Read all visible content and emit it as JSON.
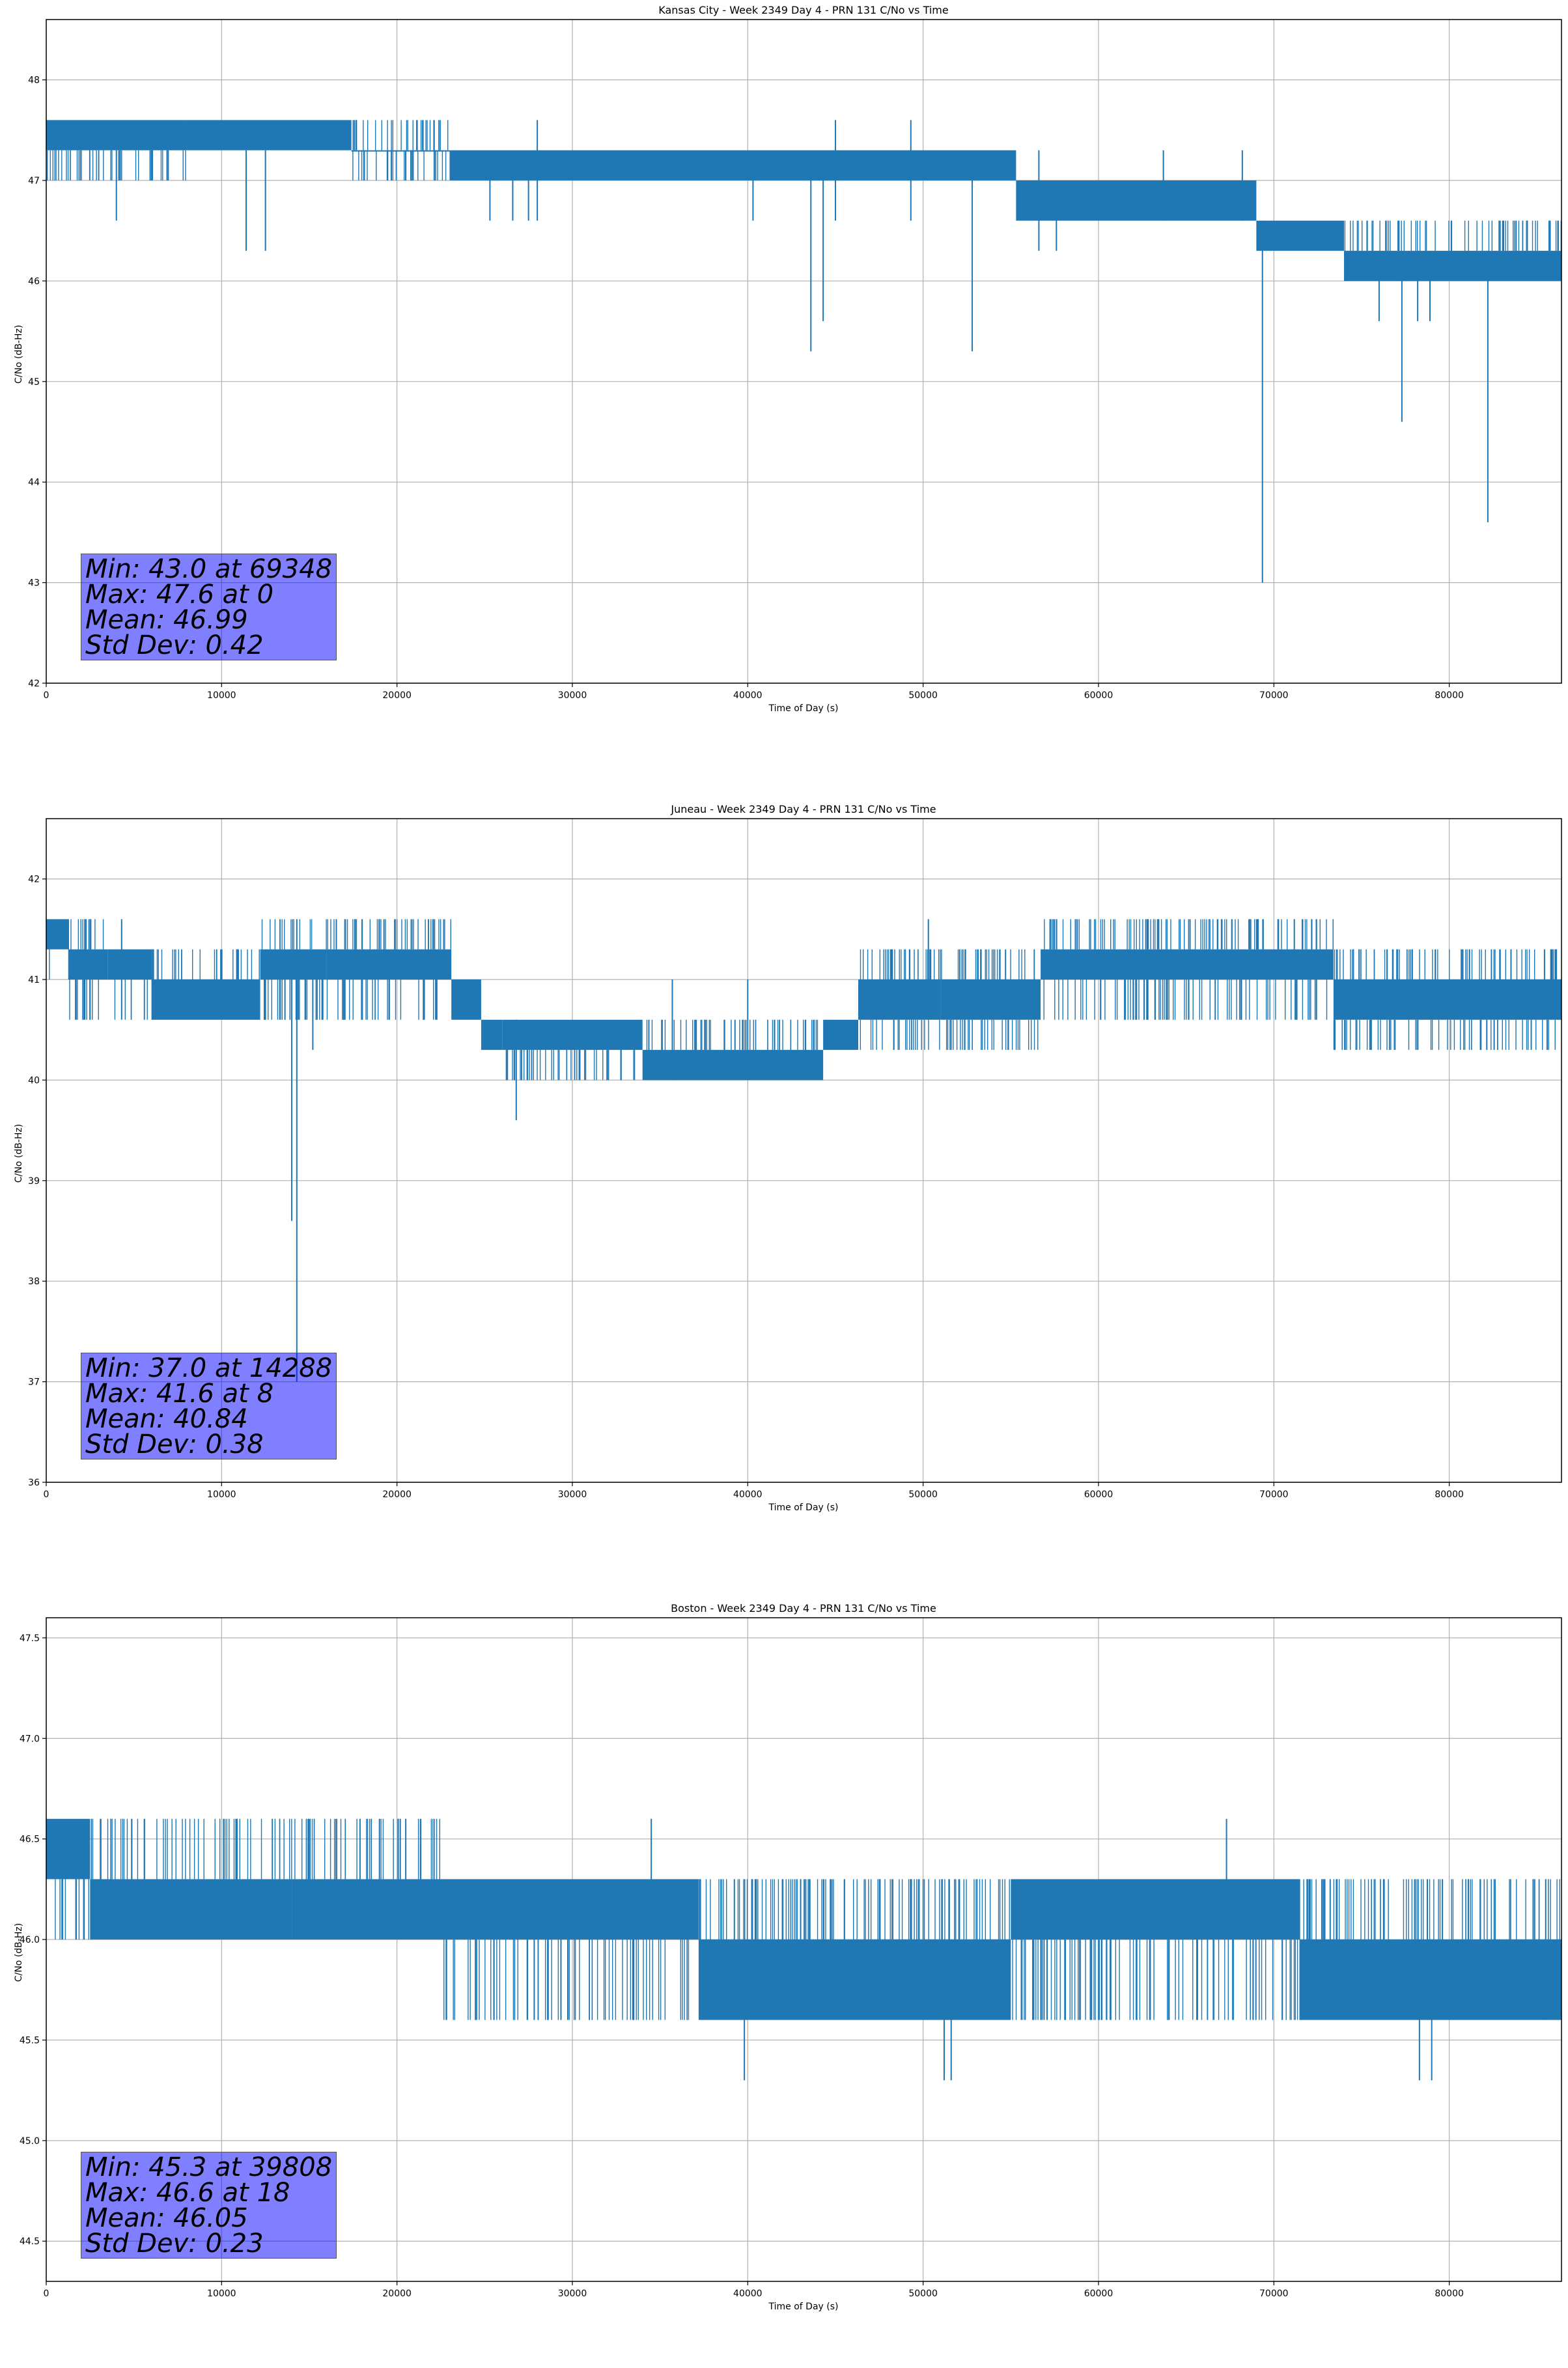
{
  "colors": {
    "series": "#1f77b4",
    "grid": "#b0b0b0",
    "stats_box": "#8080ff"
  },
  "chart_data": [
    {
      "type": "line",
      "title": "Kansas City - Week 2349 Day 4 - PRN 131 C/No vs Time",
      "xlabel": "Time of Day (s)",
      "ylabel": "C/No (dB-Hz)",
      "xlim": [
        0,
        86400
      ],
      "ylim": [
        42,
        48.6
      ],
      "xticks": [
        0,
        10000,
        20000,
        30000,
        40000,
        50000,
        60000,
        70000,
        80000
      ],
      "xtick_labels": [
        "0",
        "10000",
        "20000",
        "30000",
        "40000",
        "50000",
        "60000",
        "70000",
        "80000"
      ],
      "yticks": [
        42,
        43,
        44,
        45,
        46,
        47,
        48
      ],
      "ytick_labels": [
        "42",
        "43",
        "44",
        "45",
        "46",
        "47",
        "48"
      ],
      "grid": true,
      "series": [
        {
          "name": "C/No",
          "segments": [
            {
              "x0": 0,
              "x1": 8000,
              "lo": 47.0,
              "hi": 47.6,
              "core_lo": 47.3,
              "core_hi": 47.6
            },
            {
              "x0": 8000,
              "x1": 17400,
              "lo": 47.3,
              "hi": 47.6,
              "core_lo": 47.3,
              "core_hi": 47.6
            },
            {
              "x0": 17400,
              "x1": 23000,
              "lo": 47.0,
              "hi": 47.6,
              "core_lo": 47.3,
              "core_hi": 47.3
            },
            {
              "x0": 23000,
              "x1": 55300,
              "lo": 47.0,
              "hi": 47.3,
              "core_lo": 47.0,
              "core_hi": 47.3
            },
            {
              "x0": 55300,
              "x1": 69000,
              "lo": 46.6,
              "hi": 47.0,
              "core_lo": 46.6,
              "core_hi": 47.0
            },
            {
              "x0": 69000,
              "x1": 74000,
              "lo": 46.3,
              "hi": 46.6,
              "core_lo": 46.3,
              "core_hi": 46.6
            },
            {
              "x0": 74000,
              "x1": 86400,
              "lo": 46.0,
              "hi": 46.6,
              "core_lo": 46.0,
              "core_hi": 46.3
            }
          ],
          "spikes": [
            {
              "x": 4000,
              "lo": 46.6,
              "hi": 47.3
            },
            {
              "x": 11400,
              "lo": 46.3,
              "hi": 47.3
            },
            {
              "x": 12500,
              "lo": 46.3,
              "hi": 47.3
            },
            {
              "x": 25300,
              "lo": 46.6,
              "hi": 47.0
            },
            {
              "x": 26600,
              "lo": 46.6,
              "hi": 47.0
            },
            {
              "x": 27500,
              "lo": 46.6,
              "hi": 47.0
            },
            {
              "x": 28000,
              "lo": 46.6,
              "hi": 47.6
            },
            {
              "x": 40300,
              "lo": 46.6,
              "hi": 47.0
            },
            {
              "x": 43600,
              "lo": 45.3,
              "hi": 47.0
            },
            {
              "x": 44300,
              "lo": 45.6,
              "hi": 47.0
            },
            {
              "x": 45000,
              "lo": 46.6,
              "hi": 47.6
            },
            {
              "x": 49300,
              "lo": 46.6,
              "hi": 47.6
            },
            {
              "x": 52800,
              "lo": 45.3,
              "hi": 47.0
            },
            {
              "x": 56600,
              "lo": 46.3,
              "hi": 47.3
            },
            {
              "x": 57600,
              "lo": 46.3,
              "hi": 47.0
            },
            {
              "x": 63700,
              "lo": 46.6,
              "hi": 47.3
            },
            {
              "x": 68200,
              "lo": 46.6,
              "hi": 47.3
            },
            {
              "x": 69348,
              "lo": 43.0,
              "hi": 46.6
            },
            {
              "x": 76000,
              "lo": 45.6,
              "hi": 46.3
            },
            {
              "x": 77300,
              "lo": 44.6,
              "hi": 46.3
            },
            {
              "x": 78200,
              "lo": 45.6,
              "hi": 46.3
            },
            {
              "x": 78900,
              "lo": 45.6,
              "hi": 46.3
            },
            {
              "x": 82200,
              "lo": 43.6,
              "hi": 46.3
            }
          ]
        }
      ],
      "stats": {
        "min": "Min: 43.0 at 69348",
        "max": "Max: 47.6 at 0",
        "mean": "Mean: 46.99",
        "std": "Std Dev: 0.42"
      }
    },
    {
      "type": "line",
      "title": "Juneau - Week 2349 Day 4 - PRN 131 C/No vs Time",
      "xlabel": "Time of Day (s)",
      "ylabel": "C/No (dB-Hz)",
      "xlim": [
        0,
        86400
      ],
      "ylim": [
        36,
        42.6
      ],
      "xticks": [
        0,
        10000,
        20000,
        30000,
        40000,
        50000,
        60000,
        70000,
        80000
      ],
      "xtick_labels": [
        "0",
        "10000",
        "20000",
        "30000",
        "40000",
        "50000",
        "60000",
        "70000",
        "80000"
      ],
      "yticks": [
        36,
        37,
        38,
        39,
        40,
        41,
        42
      ],
      "ytick_labels": [
        "36",
        "37",
        "38",
        "39",
        "40",
        "41",
        "42"
      ],
      "grid": true,
      "series": [
        {
          "name": "C/No",
          "segments": [
            {
              "x0": 0,
              "x1": 1300,
              "lo": 41.0,
              "hi": 41.6,
              "core_lo": 41.3,
              "core_hi": 41.6
            },
            {
              "x0": 1300,
              "x1": 3500,
              "lo": 40.6,
              "hi": 41.6,
              "core_lo": 41.0,
              "core_hi": 41.3
            },
            {
              "x0": 3500,
              "x1": 6000,
              "lo": 40.6,
              "hi": 41.3,
              "core_lo": 41.0,
              "core_hi": 41.3
            },
            {
              "x0": 6000,
              "x1": 12200,
              "lo": 40.6,
              "hi": 41.3,
              "core_lo": 40.6,
              "core_hi": 41.0
            },
            {
              "x0": 12200,
              "x1": 16000,
              "lo": 40.6,
              "hi": 41.6,
              "core_lo": 41.0,
              "core_hi": 41.3
            },
            {
              "x0": 16000,
              "x1": 23100,
              "lo": 40.6,
              "hi": 41.6,
              "core_lo": 41.0,
              "core_hi": 41.3
            },
            {
              "x0": 23100,
              "x1": 24800,
              "lo": 40.6,
              "hi": 41.0,
              "core_lo": 40.6,
              "core_hi": 41.0
            },
            {
              "x0": 24800,
              "x1": 26000,
              "lo": 40.3,
              "hi": 40.6,
              "core_lo": 40.3,
              "core_hi": 40.6
            },
            {
              "x0": 26000,
              "x1": 34000,
              "lo": 40.0,
              "hi": 40.6,
              "core_lo": 40.3,
              "core_hi": 40.6
            },
            {
              "x0": 34000,
              "x1": 44300,
              "lo": 40.0,
              "hi": 40.6,
              "core_lo": 40.0,
              "core_hi": 40.3
            },
            {
              "x0": 44300,
              "x1": 46300,
              "lo": 40.3,
              "hi": 40.6,
              "core_lo": 40.3,
              "core_hi": 40.6
            },
            {
              "x0": 46300,
              "x1": 51000,
              "lo": 40.3,
              "hi": 41.3,
              "core_lo": 40.6,
              "core_hi": 41.0
            },
            {
              "x0": 51000,
              "x1": 56700,
              "lo": 40.3,
              "hi": 41.3,
              "core_lo": 40.6,
              "core_hi": 41.0
            },
            {
              "x0": 56700,
              "x1": 73400,
              "lo": 40.6,
              "hi": 41.6,
              "core_lo": 41.0,
              "core_hi": 41.3
            },
            {
              "x0": 73400,
              "x1": 86400,
              "lo": 40.3,
              "hi": 41.3,
              "core_lo": 40.6,
              "core_hi": 41.0
            }
          ],
          "spikes": [
            {
              "x": 2200,
              "lo": 40.6,
              "hi": 41.6
            },
            {
              "x": 4300,
              "lo": 40.6,
              "hi": 41.6
            },
            {
              "x": 14000,
              "lo": 38.6,
              "hi": 41.0
            },
            {
              "x": 14288,
              "lo": 37.0,
              "hi": 41.6
            },
            {
              "x": 15200,
              "lo": 40.3,
              "hi": 41.0
            },
            {
              "x": 26800,
              "lo": 39.6,
              "hi": 40.6
            },
            {
              "x": 35700,
              "lo": 40.0,
              "hi": 41.0
            },
            {
              "x": 40000,
              "lo": 40.0,
              "hi": 41.0
            },
            {
              "x": 50300,
              "lo": 40.6,
              "hi": 41.6
            },
            {
              "x": 54700,
              "lo": 40.6,
              "hi": 41.3
            }
          ]
        }
      ],
      "stats": {
        "min": "Min: 37.0 at 14288",
        "max": "Max: 41.6 at 8",
        "mean": "Mean: 40.84",
        "std": "Std Dev: 0.38"
      }
    },
    {
      "type": "line",
      "title": "Boston - Week 2349 Day 4 - PRN 131 C/No vs Time",
      "xlabel": "Time of Day (s)",
      "ylabel": "C/No (dB-Hz)",
      "xlim": [
        0,
        86400
      ],
      "ylim": [
        44.3,
        47.6
      ],
      "xticks": [
        0,
        10000,
        20000,
        30000,
        40000,
        50000,
        60000,
        70000,
        80000
      ],
      "xtick_labels": [
        "0",
        "10000",
        "20000",
        "30000",
        "40000",
        "50000",
        "60000",
        "70000",
        "80000"
      ],
      "yticks": [
        44.5,
        45.0,
        45.5,
        46.0,
        46.5,
        47.0,
        47.5
      ],
      "ytick_labels": [
        "44.5",
        "45.0",
        "45.5",
        "46.0",
        "46.5",
        "47.0",
        "47.5"
      ],
      "grid": true,
      "series": [
        {
          "name": "C/No",
          "segments": [
            {
              "x0": 0,
              "x1": 2500,
              "lo": 46.0,
              "hi": 46.6,
              "core_lo": 46.3,
              "core_hi": 46.6
            },
            {
              "x0": 2500,
              "x1": 14000,
              "lo": 46.0,
              "hi": 46.6,
              "core_lo": 46.0,
              "core_hi": 46.3
            },
            {
              "x0": 14000,
              "x1": 22500,
              "lo": 46.0,
              "hi": 46.6,
              "core_lo": 46.0,
              "core_hi": 46.3
            },
            {
              "x0": 22500,
              "x1": 37200,
              "lo": 45.6,
              "hi": 46.3,
              "core_lo": 46.0,
              "core_hi": 46.3
            },
            {
              "x0": 37200,
              "x1": 55000,
              "lo": 45.6,
              "hi": 46.3,
              "core_lo": 45.6,
              "core_hi": 46.0
            },
            {
              "x0": 55000,
              "x1": 71500,
              "lo": 45.6,
              "hi": 46.3,
              "core_lo": 46.0,
              "core_hi": 46.3
            },
            {
              "x0": 71500,
              "x1": 86400,
              "lo": 45.6,
              "hi": 46.3,
              "core_lo": 45.6,
              "core_hi": 46.0
            }
          ],
          "spikes": [
            {
              "x": 19000,
              "lo": 46.0,
              "hi": 46.6
            },
            {
              "x": 20500,
              "lo": 46.0,
              "hi": 46.6
            },
            {
              "x": 34500,
              "lo": 46.0,
              "hi": 46.6
            },
            {
              "x": 39808,
              "lo": 45.3,
              "hi": 46.0
            },
            {
              "x": 51200,
              "lo": 45.3,
              "hi": 46.0
            },
            {
              "x": 51600,
              "lo": 45.3,
              "hi": 46.0
            },
            {
              "x": 67300,
              "lo": 46.0,
              "hi": 46.6
            },
            {
              "x": 78300,
              "lo": 45.3,
              "hi": 46.0
            },
            {
              "x": 79000,
              "lo": 45.3,
              "hi": 46.0
            },
            {
              "x": 85500,
              "lo": 45.6,
              "hi": 46.3
            }
          ]
        }
      ],
      "stats": {
        "min": "Min: 45.3 at 39808",
        "max": "Max: 46.6 at 18",
        "mean": "Mean: 46.05",
        "std": "Std Dev: 0.23"
      }
    }
  ]
}
